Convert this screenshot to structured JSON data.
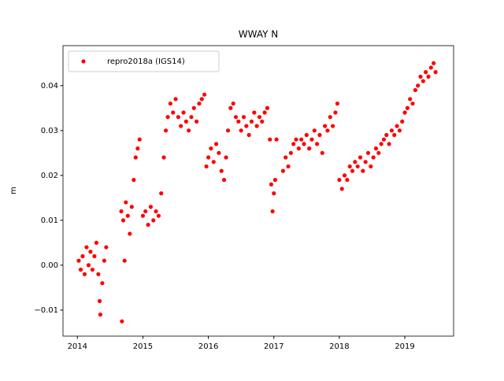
{
  "chart_data": {
    "type": "scatter",
    "title": "WWAY N",
    "ylabel": "m",
    "x": [
      2014.02,
      2014.05,
      2014.08,
      2014.11,
      2014.14,
      2014.17,
      2014.2,
      2014.23,
      2014.26,
      2014.29,
      2014.32,
      2014.34,
      2014.35,
      2014.38,
      2014.41,
      2014.44,
      2014.68,
      2014.67,
      2014.7,
      2014.72,
      2014.74,
      2014.77,
      2014.8,
      2014.83,
      2014.86,
      2014.89,
      2014.92,
      2014.95,
      2015.0,
      2015.04,
      2015.08,
      2015.12,
      2015.16,
      2015.2,
      2015.24,
      2015.28,
      2015.32,
      2015.35,
      2015.38,
      2015.42,
      2015.46,
      2015.5,
      2015.54,
      2015.58,
      2015.62,
      2015.66,
      2015.7,
      2015.74,
      2015.78,
      2015.82,
      2015.86,
      2015.9,
      2015.94,
      2015.97,
      2016.0,
      2016.04,
      2016.08,
      2016.12,
      2016.16,
      2016.2,
      2016.24,
      2016.27,
      2016.3,
      2016.34,
      2016.38,
      2016.42,
      2016.46,
      2016.5,
      2016.54,
      2016.58,
      2016.62,
      2016.66,
      2016.7,
      2016.74,
      2016.78,
      2016.82,
      2016.86,
      2016.9,
      2016.94,
      2016.96,
      2016.98,
      2017.0,
      2017.02,
      2017.04,
      2017.14,
      2017.18,
      2017.22,
      2017.26,
      2017.3,
      2017.34,
      2017.38,
      2017.42,
      2017.46,
      2017.5,
      2017.54,
      2017.58,
      2017.62,
      2017.66,
      2017.7,
      2017.74,
      2017.78,
      2017.82,
      2017.86,
      2017.9,
      2017.94,
      2017.97,
      2018.0,
      2018.04,
      2018.08,
      2018.12,
      2018.16,
      2018.2,
      2018.24,
      2018.28,
      2018.32,
      2018.36,
      2018.4,
      2018.44,
      2018.48,
      2018.52,
      2018.56,
      2018.6,
      2018.64,
      2018.68,
      2018.72,
      2018.76,
      2018.8,
      2018.84,
      2018.88,
      2018.92,
      2018.96,
      2019.0,
      2019.04,
      2019.08,
      2019.12,
      2019.16,
      2019.2,
      2019.24,
      2019.28,
      2019.32,
      2019.36,
      2019.4,
      2019.44,
      2019.47
    ],
    "series": [
      {
        "name": "repro2018a (IGS14)",
        "color": "#ff0000",
        "values": [
          0.001,
          -0.001,
          0.002,
          -0.002,
          0.004,
          0.0,
          0.003,
          -0.001,
          0.002,
          0.005,
          -0.002,
          -0.008,
          -0.011,
          -0.004,
          0.001,
          0.004,
          -0.0125,
          0.012,
          0.01,
          0.001,
          0.014,
          0.011,
          0.007,
          0.013,
          0.019,
          0.024,
          0.026,
          0.028,
          0.011,
          0.012,
          0.009,
          0.013,
          0.01,
          0.012,
          0.011,
          0.016,
          0.024,
          0.03,
          0.033,
          0.036,
          0.034,
          0.037,
          0.033,
          0.031,
          0.034,
          0.032,
          0.03,
          0.033,
          0.035,
          0.032,
          0.036,
          0.037,
          0.038,
          0.022,
          0.024,
          0.026,
          0.023,
          0.027,
          0.025,
          0.021,
          0.019,
          0.024,
          0.03,
          0.035,
          0.036,
          0.033,
          0.032,
          0.03,
          0.033,
          0.031,
          0.029,
          0.032,
          0.034,
          0.031,
          0.033,
          0.032,
          0.034,
          0.035,
          0.028,
          0.018,
          0.012,
          0.016,
          0.019,
          0.028,
          0.021,
          0.024,
          0.022,
          0.025,
          0.027,
          0.028,
          0.026,
          0.028,
          0.027,
          0.029,
          0.026,
          0.028,
          0.03,
          0.027,
          0.029,
          0.025,
          0.031,
          0.03,
          0.033,
          0.031,
          0.034,
          0.036,
          0.019,
          0.017,
          0.02,
          0.019,
          0.022,
          0.021,
          0.023,
          0.022,
          0.024,
          0.021,
          0.023,
          0.025,
          0.022,
          0.024,
          0.026,
          0.025,
          0.027,
          0.028,
          0.029,
          0.027,
          0.03,
          0.029,
          0.031,
          0.03,
          0.032,
          0.034,
          0.035,
          0.037,
          0.036,
          0.039,
          0.04,
          0.042,
          0.041,
          0.043,
          0.042,
          0.044,
          0.045,
          0.043
        ]
      }
    ],
    "xlim": [
      2013.78,
      2019.745
    ],
    "xticks": [
      2014,
      2015,
      2016,
      2017,
      2018,
      2019
    ],
    "ylim": [
      -0.0158,
      0.0489
    ],
    "yticks": [
      {
        "value": -0.01,
        "label": "−0.01"
      },
      {
        "value": 0,
        "label": "0.00"
      },
      0.01,
      0.02,
      0.03,
      0.04
    ],
    "legend": "upper left"
  }
}
